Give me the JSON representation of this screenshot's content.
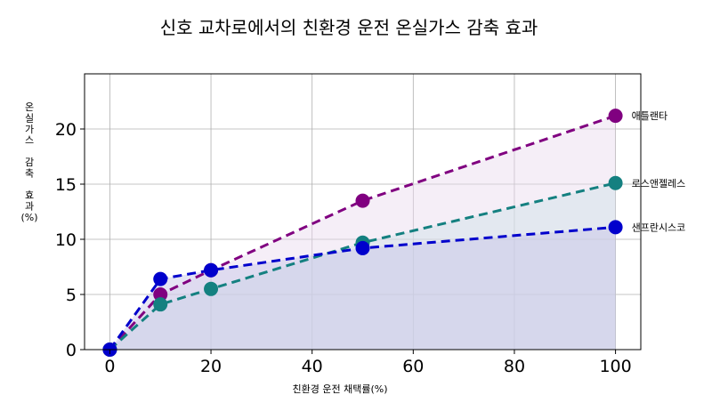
{
  "chart_data": {
    "type": "line",
    "title": "신호 교차로에서의 친환경 운전 온실가스 감축 효과",
    "xlabel": "친환경 운전 채택률(%)",
    "ylabel_lines": [
      "온",
      "실",
      "가",
      "스",
      "",
      "감",
      "축",
      "",
      "효",
      "과",
      "(%)"
    ],
    "xlim": [
      -5,
      105
    ],
    "ylim": [
      0,
      25
    ],
    "xticks": [
      0,
      20,
      40,
      60,
      80,
      100
    ],
    "yticks": [
      0,
      5,
      10,
      15,
      20
    ],
    "x": [
      0,
      10,
      20,
      50,
      100
    ],
    "grid": true,
    "legend": "none",
    "series": [
      {
        "name": "애틀랜타",
        "values": [
          0,
          5.0,
          7.2,
          13.5,
          21.2
        ],
        "color": "#800080",
        "fill": "#e9d9ee",
        "line_style": "dashed"
      },
      {
        "name": "로스앤젤레스",
        "values": [
          0,
          4.1,
          5.5,
          9.7,
          15.1
        ],
        "color": "#148080",
        "fill": "#cfe0e6",
        "line_style": "dashed"
      },
      {
        "name": "샌프란시스코",
        "values": [
          0,
          6.4,
          7.2,
          9.2,
          11.1
        ],
        "color": "#0000cc",
        "fill": "#c5c3e6",
        "line_style": "dashed"
      }
    ]
  }
}
